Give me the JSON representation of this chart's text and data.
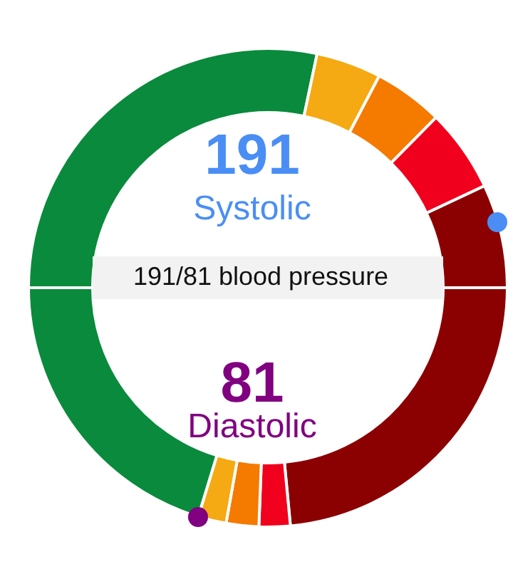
{
  "chart_data": {
    "type": "donut",
    "title": "191/81 blood pressure",
    "annotations": [
      "191",
      "Systolic",
      "81",
      "Diastolic"
    ],
    "categories": [
      null,
      null,
      null,
      null,
      null,
      null,
      null,
      null,
      null,
      null
    ],
    "values": [
      28.3,
      4.4,
      4.7,
      5.6,
      7.0,
      23.5,
      2.1,
      2.2,
      1.9,
      20.3
    ],
    "colors": [
      "#0a8a3c",
      "#f5a912",
      "#f57a00",
      "#f0001c",
      "#8b0000",
      "#8b0000",
      "#f0001c",
      "#f57a00",
      "#f5a912",
      "#0a8a3c"
    ]
  }
}
